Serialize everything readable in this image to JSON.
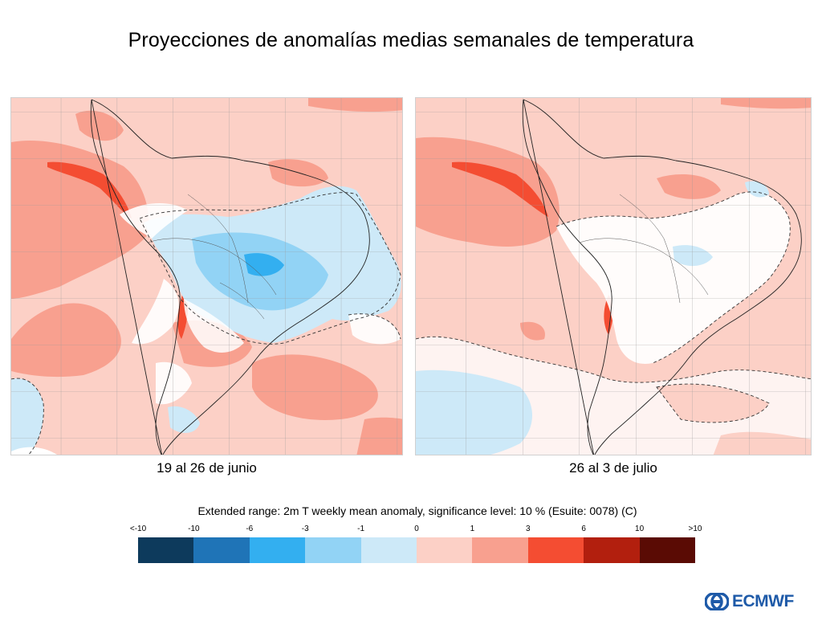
{
  "header": {
    "title": "Proyecciones de anomalías medias semanales de temperatura"
  },
  "maps": [
    {
      "caption": "19 al 26 de junio"
    },
    {
      "caption": "26 al 3 de julio"
    }
  ],
  "legend": {
    "title": "Extended range: 2m T weekly mean anomaly, significance level: 10 % (Esuite: 0078) (C)",
    "labels": [
      "<-10",
      "-10",
      "-6",
      "-3",
      "-1",
      "0",
      "1",
      "3",
      "6",
      "10",
      ">10"
    ],
    "colors": [
      "#0d3a5c",
      "#1f74b7",
      "#33aff0",
      "#92d3f5",
      "#cde9f8",
      "#fcd0c6",
      "#f8a08f",
      "#f44d32",
      "#b21f0e",
      "#5a0b04"
    ]
  },
  "logo": {
    "text": "ECMWF",
    "color": "#1e5aa8"
  }
}
